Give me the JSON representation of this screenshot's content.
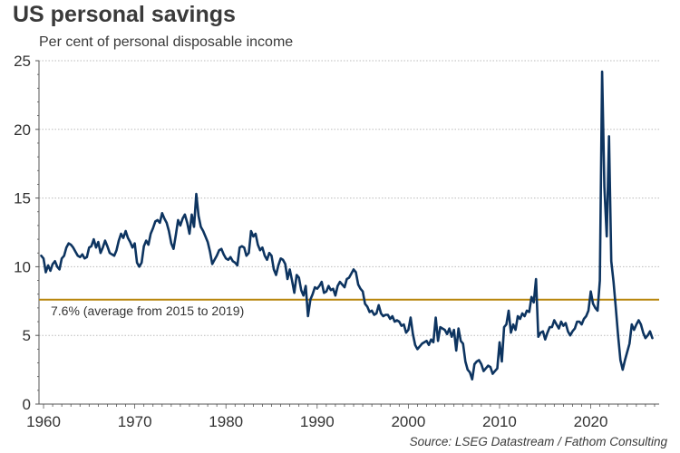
{
  "chart_data": {
    "type": "line",
    "title": "US personal savings",
    "subtitle": "Per cent of personal disposable income",
    "xlabel": "",
    "ylabel": "",
    "xlim": [
      1959.5,
      2027.5
    ],
    "ylim": [
      0,
      25
    ],
    "x_ticks": [
      1960,
      1970,
      1980,
      1990,
      2000,
      2010,
      2020
    ],
    "y_ticks": [
      0,
      5,
      10,
      15,
      20,
      25
    ],
    "grid": "horizontal-dotted",
    "colors": {
      "series": "#0d3460",
      "reference": "#b8860b",
      "grid": "#bbbbbb",
      "axis": "#555555"
    },
    "reference_line": {
      "value": 7.6,
      "label": "7.6% (average from 2015 to 2019)"
    },
    "series": [
      {
        "name": "US personal savings rate",
        "frequency": "quarterly",
        "start": 1959.75,
        "step": 0.25,
        "values": [
          10.8,
          10.6,
          9.6,
          10.1,
          9.7,
          10.2,
          10.4,
          10.0,
          9.8,
          10.6,
          10.8,
          11.4,
          11.7,
          11.6,
          11.4,
          11.1,
          10.8,
          10.7,
          10.9,
          10.6,
          10.7,
          11.4,
          11.5,
          12.0,
          11.4,
          11.8,
          11.0,
          11.4,
          11.9,
          11.5,
          11.0,
          10.9,
          10.8,
          11.2,
          11.9,
          12.4,
          12.1,
          12.6,
          12.1,
          11.8,
          11.4,
          11.7,
          10.3,
          10.0,
          10.3,
          11.5,
          11.9,
          11.6,
          12.4,
          12.8,
          13.3,
          13.4,
          13.2,
          13.9,
          13.5,
          13.2,
          12.6,
          11.7,
          11.3,
          12.3,
          13.4,
          13.0,
          13.5,
          13.8,
          13.2,
          12.4,
          13.8,
          12.9,
          15.3,
          13.7,
          12.9,
          12.6,
          12.2,
          11.8,
          11.1,
          10.2,
          10.5,
          10.8,
          11.2,
          11.3,
          10.9,
          10.6,
          10.5,
          10.7,
          10.4,
          10.3,
          10.1,
          11.4,
          11.5,
          11.4,
          10.8,
          11.0,
          12.6,
          12.2,
          12.4,
          11.6,
          11.2,
          11.4,
          10.8,
          10.5,
          11.0,
          10.8,
          9.8,
          9.4,
          10.1,
          10.6,
          10.5,
          10.2,
          9.1,
          9.8,
          9.0,
          8.1,
          9.4,
          9.2,
          8.3,
          7.9,
          8.6,
          6.4,
          7.6,
          8.0,
          8.5,
          8.4,
          8.6,
          8.9,
          8.1,
          8.2,
          8.6,
          8.3,
          8.4,
          7.9,
          8.6,
          8.9,
          8.7,
          8.5,
          9.1,
          9.2,
          9.5,
          9.8,
          9.6,
          8.7,
          8.4,
          8.2,
          7.3,
          7.1,
          6.7,
          6.8,
          6.5,
          6.6,
          7.2,
          6.6,
          6.4,
          6.5,
          6.5,
          6.2,
          6.4,
          6.0,
          6.1,
          6.0,
          5.7,
          5.8,
          5.2,
          5.4,
          6.3,
          5.1,
          4.3,
          4.0,
          4.2,
          4.4,
          4.5,
          4.6,
          4.3,
          4.7,
          4.5,
          6.3,
          4.6,
          5.6,
          5.5,
          5.4,
          5.1,
          5.5,
          4.9,
          5.4,
          3.9,
          5.5,
          4.6,
          4.4,
          3.1,
          2.5,
          2.3,
          1.8,
          2.9,
          3.1,
          3.2,
          2.9,
          2.4,
          2.6,
          2.8,
          2.7,
          2.2,
          2.4,
          2.6,
          4.5,
          3.1,
          5.6,
          5.8,
          6.8,
          5.2,
          5.8,
          5.4,
          6.4,
          6.2,
          6.6,
          6.4,
          6.8,
          6.7,
          7.8,
          7.4,
          9.1,
          4.9,
          5.2,
          5.3,
          4.7,
          5.2,
          5.6,
          5.6,
          6.1,
          5.8,
          5.5,
          6.0,
          5.7,
          5.9,
          5.3,
          5.0,
          5.3,
          5.5,
          6.0,
          6.0,
          5.8,
          6.2,
          6.4,
          6.8,
          8.2,
          7.3,
          7.0,
          6.8,
          9.0,
          24.2,
          15.8,
          12.2,
          19.5,
          10.4,
          8.9,
          7.0,
          5.0,
          3.2,
          2.5,
          3.2,
          3.8,
          4.4,
          5.8,
          5.4,
          5.8,
          6.1,
          5.8,
          5.2,
          4.8,
          5.0,
          5.3,
          4.8
        ]
      }
    ],
    "source": "Source: LSEG Datastream / Fathom Consulting"
  }
}
